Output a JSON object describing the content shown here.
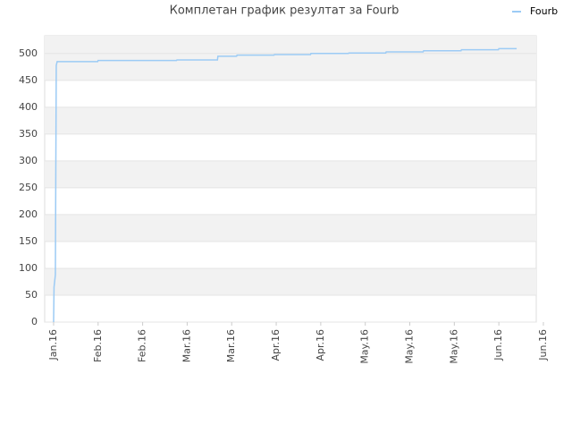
{
  "chart_data": {
    "type": "line",
    "title": "Комплетан график резултат за Fourb",
    "x": [
      0,
      0.01,
      0.04,
      0.06,
      0.08,
      0.99,
      1.0,
      2.76,
      2.77,
      3.68,
      3.69,
      4.11,
      4.12,
      4.95,
      4.96,
      5.77,
      5.78,
      6.62,
      6.63,
      7.46,
      7.47,
      8.3,
      8.31,
      9.15,
      9.16,
      9.99,
      10.0,
      10.4
    ],
    "series": [
      {
        "name": "Fourb",
        "color": "#9ccbf5",
        "values": [
          0,
          65,
          88,
          478,
          485,
          485,
          487,
          487,
          488,
          488,
          495,
          495,
          497,
          497,
          498,
          498,
          500,
          500,
          501,
          501,
          503,
          503,
          505,
          505,
          507,
          507,
          509,
          509
        ]
      }
    ],
    "xlim": [
      -0.2,
      10.84
    ],
    "xticks": [
      {
        "value": 0,
        "label": "Jan.16"
      },
      {
        "value": 1,
        "label": "Feb.16"
      },
      {
        "value": 2,
        "label": "Feb.16"
      },
      {
        "value": 3,
        "label": "Mar.16"
      },
      {
        "value": 4,
        "label": "Mar.16"
      },
      {
        "value": 5,
        "label": "Apr.16"
      },
      {
        "value": 6,
        "label": "Apr.16"
      },
      {
        "value": 7,
        "label": "May.16"
      },
      {
        "value": 8,
        "label": "May.16"
      },
      {
        "value": 9,
        "label": "May.16"
      },
      {
        "value": 10,
        "label": "Jun.16"
      },
      {
        "value": 11,
        "label": "Jun.16"
      }
    ],
    "ylim": [
      0,
      533
    ],
    "yticks": [
      0,
      50,
      100,
      150,
      200,
      250,
      300,
      350,
      400,
      450,
      500
    ],
    "grid": true,
    "legend": "top-right"
  }
}
